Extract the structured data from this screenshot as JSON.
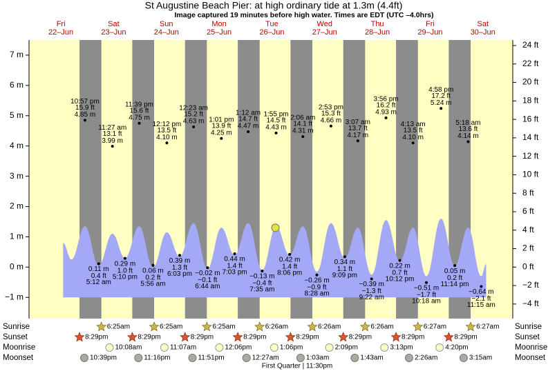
{
  "chart_data": {
    "type": "tide",
    "title": "St Augustine Beach Pier: at high  ordinary tide at 1.3m (4.4ft)",
    "subtitle": "Image captured 19 minutes before high water. Times are EDT (UTC –4.0hrs)",
    "xlim": [
      -2.5,
      217.6
    ],
    "ylim": [
      -1.7,
      7.5
    ],
    "yticks": [
      {
        "value": 7,
        "label": "7 m"
      },
      {
        "value": 6,
        "label": "6 m"
      },
      {
        "value": 5,
        "label": "5 m"
      },
      {
        "value": 4,
        "label": "4 m"
      },
      {
        "value": 3,
        "label": "3 m"
      },
      {
        "value": 2,
        "label": "2 m"
      },
      {
        "value": 1,
        "label": "1 m"
      },
      {
        "value": 0,
        "label": "0 m"
      },
      {
        "value": -1,
        "label": "−1 m"
      }
    ],
    "y2lim": [
      -5.58,
      24.6
    ],
    "y2ticks": [
      {
        "value": 24,
        "label": "24 ft"
      },
      {
        "value": 22,
        "label": "22 ft"
      },
      {
        "value": 20,
        "label": "20 ft"
      },
      {
        "value": 18,
        "label": "18 ft"
      },
      {
        "value": 16,
        "label": "16 ft"
      },
      {
        "value": 14,
        "label": "14 ft"
      },
      {
        "value": 12,
        "label": "12 ft"
      },
      {
        "value": 10,
        "label": "10 ft"
      },
      {
        "value": 8,
        "label": "8 ft"
      },
      {
        "value": 6,
        "label": "6 ft"
      },
      {
        "value": 4,
        "label": "4 ft"
      },
      {
        "value": 2,
        "label": "2 ft"
      },
      {
        "value": 0,
        "label": "0 ft"
      },
      {
        "value": -2,
        "label": "−2 ft"
      },
      {
        "value": -4,
        "label": "−4 ft"
      }
    ],
    "days": [
      {
        "name": "Fri",
        "date": "22–Jun"
      },
      {
        "name": "Sat",
        "date": "23–Jun"
      },
      {
        "name": "Sun",
        "date": "24–Jun"
      },
      {
        "name": "Mon",
        "date": "25–Jun"
      },
      {
        "name": "Tue",
        "date": "26–Jun"
      },
      {
        "name": "Wed",
        "date": "27–Jun"
      },
      {
        "name": "Thu",
        "date": "28–Jun"
      },
      {
        "name": "Fri",
        "date": "29–Jun"
      },
      {
        "name": "Sat",
        "date": "30–Jun"
      }
    ],
    "day_color": "#ffffc4",
    "night_color": "#8c8c8c",
    "highs": {
      "x": [
        22.95,
        35.45,
        47.65,
        60.2,
        72.38,
        85.02,
        97.2,
        109.92,
        122.1,
        134.88,
        147.12,
        159.93,
        172.22,
        184.97,
        197.3
      ],
      "values": [
        4.85,
        3.99,
        4.75,
        4.1,
        4.63,
        4.25,
        4.47,
        4.43,
        4.31,
        4.66,
        4.17,
        4.93,
        4.1,
        5.24,
        4.14
      ],
      "value_labels": [
        "4.85 m",
        "3.99 m",
        "4.75 m",
        "4.10 m",
        "4.63 m",
        "4.25 m",
        "4.47 m",
        "4.43 m",
        "4.31 m",
        "4.66 m",
        "4.17 m",
        "4.93 m",
        "4.10 m",
        "5.24 m",
        "4.14 m"
      ],
      "ft_labels": [
        "15.9 ft",
        "13.1 ft",
        "15.6 ft",
        "13.5 ft",
        "15.2 ft",
        "13.9 ft",
        "14.7 ft",
        "14.5 ft",
        "14.1 ft",
        "15.3 ft",
        "13.7 ft",
        "16.2 ft",
        "13.5 ft",
        "17.2 ft",
        "13.6 ft"
      ],
      "times": [
        "10:57 pm",
        "11:27 am",
        "11:39 pm",
        "12:12 pm",
        "12:23 am",
        "1:01 pm",
        "1:12 am",
        "1:55 pm",
        "2:06 am",
        "2:53 pm",
        "3:07 am",
        "3:56 pm",
        "4:13 am",
        "4:58 pm",
        "5:18 am"
      ]
    },
    "lows": {
      "x": [
        29.2,
        41.17,
        53.93,
        66.05,
        78.73,
        91.05,
        103.58,
        116.1,
        128.47,
        141.15,
        153.37,
        166.2,
        178.3,
        191.23,
        203.25
      ],
      "values": [
        0.11,
        0.29,
        0.06,
        0.39,
        -0.02,
        0.44,
        -0.13,
        0.42,
        -0.26,
        0.34,
        -0.39,
        0.22,
        -0.51,
        0.05,
        -0.64
      ],
      "value_labels": [
        "0.11 m",
        "0.29 m",
        "0.06 m",
        "0.39 m",
        "−0.02 m",
        "0.44 m",
        "−0.13 m",
        "0.42 m",
        "−0.26 m",
        "0.34 m",
        "−0.39 m",
        "0.22 m",
        "−0.51 m",
        "0.05 m",
        "−0.64 m"
      ],
      "ft_labels": [
        "0.4 ft",
        "1.0 ft",
        "0.2 ft",
        "1.3 ft",
        "−0.1 ft",
        "1.4 ft",
        "−0.4 ft",
        "1.4 ft",
        "−0.9 ft",
        "1.1 ft",
        "−1.3 ft",
        "0.7 ft",
        "−1.7 ft",
        "0.2 ft",
        "−2.1 ft"
      ],
      "times": [
        "5:12 am",
        "5:10 pm",
        "5:56 am",
        "6:03 pm",
        "6:44 am",
        "7:03 pm",
        "7:35 am",
        "8:06 pm",
        "8:28 am",
        "9:09 pm",
        "9:22 am",
        "10:12 pm",
        "10:18 am",
        "11:14 pm",
        "11:15 am"
      ]
    },
    "curve": {
      "color": "#a3a8f7",
      "x": [
        13,
        16.8,
        22.95,
        29.2,
        35.45,
        41.17,
        47.65,
        53.93,
        60.2,
        66.05,
        72.38,
        78.73,
        85.02,
        91.05,
        97.2,
        103.58,
        109.92,
        116.1,
        122.1,
        128.47,
        134.88,
        141.15,
        147.12,
        153.37,
        159.93,
        166.2,
        172.22,
        178.3,
        184.97,
        191.23,
        197.3,
        203.25,
        205.5
      ],
      "values": [
        0.8,
        0.25,
        1.35,
        0.05,
        1.1,
        0.3,
        1.35,
        0.0,
        1.15,
        0.35,
        1.45,
        -0.05,
        1.3,
        0.4,
        1.45,
        -0.1,
        1.35,
        0.4,
        1.35,
        -0.15,
        1.45,
        0.3,
        1.3,
        -0.25,
        1.55,
        0.2,
        1.3,
        -0.3,
        1.6,
        0.05,
        1.3,
        -0.3,
        0.1
      ]
    },
    "now": {
      "x": 109.6,
      "value": 1.3,
      "color": "#e6df3c"
    },
    "rows": {
      "sunrise": {
        "label": "Sunrise",
        "x": [
          30.42,
          54.42,
          78.42,
          102.43,
          126.43,
          150.43,
          174.45,
          198.45
        ],
        "times": [
          "6:25am",
          "6:25am",
          "6:25am",
          "6:26am",
          "6:26am",
          "6:26am",
          "6:27am",
          "6:27am"
        ]
      },
      "sunset": {
        "label": "Sunset",
        "x": [
          20.48,
          44.48,
          68.48,
          92.48,
          116.48,
          140.48,
          164.48,
          188.48
        ],
        "times": [
          "8:29pm",
          "8:29pm",
          "8:29pm",
          "8:29pm",
          "8:29pm",
          "8:29pm",
          "8:29pm",
          "8:29pm"
        ]
      },
      "moonrise": {
        "label": "Moonrise",
        "x": [
          34.13,
          59.12,
          84.1,
          109.1,
          134.15,
          159.22,
          184.33
        ],
        "times": [
          "10:08am",
          "11:07am",
          "12:06pm",
          "1:06pm",
          "2:09pm",
          "3:13pm",
          "4:20pm"
        ]
      },
      "moonset": {
        "label": "Moonset",
        "x": [
          22.65,
          47.27,
          71.85,
          96.45,
          121.05,
          145.72,
          170.43,
          195.25
        ],
        "times": [
          "10:39pm",
          "11:16pm",
          "11:51pm",
          "12:27am",
          "1:03am",
          "1:43am",
          "2:26am",
          "3:15am"
        ]
      }
    },
    "moon_phase": {
      "label": "First Quarter | 11:30pm",
      "x": 119.5
    }
  }
}
